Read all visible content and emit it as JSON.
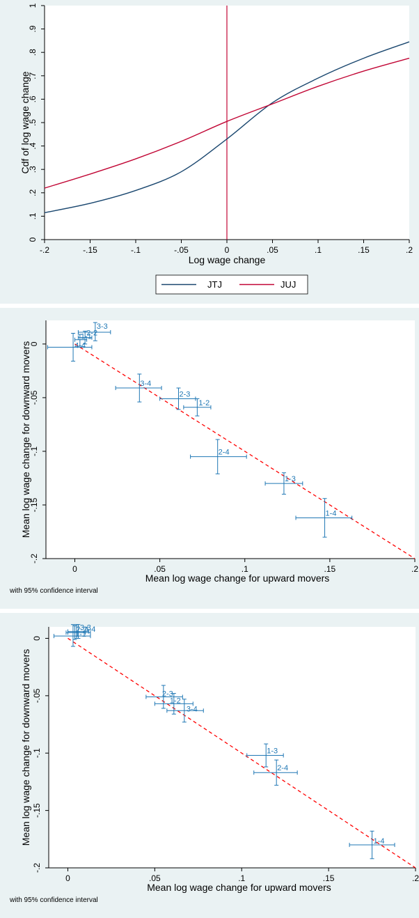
{
  "colors": {
    "panel_bg": "#eaf2f3",
    "plot_bg": "#ffffff",
    "jtj": "#1a476f",
    "juj": "#c10534",
    "markers": "#1f77b4",
    "fit_line": "#ff0000"
  },
  "chart_data": [
    {
      "type": "line",
      "xlabel": "Log wage change",
      "ylabel": "Cdf of log wage change",
      "xlim": [
        -0.2,
        0.2
      ],
      "ylim": [
        0,
        1
      ],
      "xticks": [
        "-.2",
        "-.15",
        "-.1",
        "-.05",
        "0",
        ".05",
        ".1",
        ".15",
        ".2"
      ],
      "yticks": [
        "0",
        ".1",
        ".2",
        ".3",
        ".4",
        ".5",
        ".6",
        ".7",
        ".8",
        ".9",
        "1"
      ],
      "grid": false,
      "legend_position": "bottom",
      "vertical_line_x": 0,
      "series": [
        {
          "name": "JTJ",
          "color": "#1a476f",
          "x": [
            -0.2,
            -0.15,
            -0.1,
            -0.05,
            0,
            0.05,
            0.1,
            0.15,
            0.2
          ],
          "y": [
            0.115,
            0.155,
            0.21,
            0.29,
            0.43,
            0.585,
            0.69,
            0.775,
            0.845
          ]
        },
        {
          "name": "JUJ",
          "color": "#c10534",
          "x": [
            -0.2,
            -0.15,
            -0.1,
            -0.05,
            0,
            0.05,
            0.1,
            0.15,
            0.2
          ],
          "y": [
            0.22,
            0.28,
            0.345,
            0.42,
            0.505,
            0.58,
            0.655,
            0.72,
            0.775
          ]
        }
      ]
    },
    {
      "type": "scatter",
      "xlabel": "Mean log wage change for upward movers",
      "ylabel": "Mean log wage change for downward movers",
      "note": "with 95% confidence interval",
      "xlim": [
        -0.017,
        0.2
      ],
      "ylim": [
        -0.2,
        0.022
      ],
      "xticks": [
        "0",
        ".05",
        ".1",
        ".15",
        ".2"
      ],
      "yticks": [
        "-.2",
        "-.15",
        "-.1",
        "-.05",
        "0"
      ],
      "grid": false,
      "reference_line": {
        "x": [
          0,
          0.2
        ],
        "y": [
          0,
          -0.2
        ]
      },
      "points": [
        {
          "label": "3-3",
          "x": 0.012,
          "y": 0.011,
          "x_lo": 0.002,
          "x_hi": 0.021,
          "y_lo": 0.003,
          "y_hi": 0.02
        },
        {
          "label": "2-2",
          "x": 0.006,
          "y": 0.006,
          "x_lo": 0.002,
          "x_hi": 0.01,
          "y_lo": 0.0,
          "y_hi": 0.012
        },
        {
          "label": "1-1",
          "x": 0.003,
          "y": 0.004,
          "x_lo": 0.0,
          "x_hi": 0.007,
          "y_lo": -0.002,
          "y_hi": 0.009
        },
        {
          "label": "4-4",
          "x": -0.001,
          "y": -0.003,
          "x_lo": -0.016,
          "x_hi": 0.01,
          "y_lo": -0.016,
          "y_hi": 0.01
        },
        {
          "label": "3-4",
          "x": 0.038,
          "y": -0.041,
          "x_lo": 0.024,
          "x_hi": 0.051,
          "y_lo": -0.054,
          "y_hi": -0.028
        },
        {
          "label": "2-3",
          "x": 0.061,
          "y": -0.051,
          "x_lo": 0.05,
          "x_hi": 0.071,
          "y_lo": -0.061,
          "y_hi": -0.041
        },
        {
          "label": "1-2",
          "x": 0.072,
          "y": -0.059,
          "x_lo": 0.064,
          "x_hi": 0.08,
          "y_lo": -0.067,
          "y_hi": -0.051
        },
        {
          "label": "2-4",
          "x": 0.084,
          "y": -0.105,
          "x_lo": 0.068,
          "x_hi": 0.101,
          "y_lo": -0.121,
          "y_hi": -0.089
        },
        {
          "label": "1-3",
          "x": 0.123,
          "y": -0.13,
          "x_lo": 0.112,
          "x_hi": 0.134,
          "y_lo": -0.14,
          "y_hi": -0.12
        },
        {
          "label": "1-4",
          "x": 0.147,
          "y": -0.162,
          "x_lo": 0.13,
          "x_hi": 0.163,
          "y_lo": -0.18,
          "y_hi": -0.144
        }
      ]
    },
    {
      "type": "scatter",
      "xlabel": "Mean log wage change for upward movers",
      "ylabel": "Mean log wage change for downward movers",
      "note": "with 95% confidence interval",
      "xlim": [
        -0.011,
        0.2
      ],
      "ylim": [
        -0.2,
        0.01
      ],
      "xticks": [
        "0",
        ".05",
        ".1",
        ".15",
        ".2"
      ],
      "yticks": [
        "-.2",
        "-.15",
        "-.1",
        "-.05",
        "0"
      ],
      "grid": false,
      "reference_line": {
        "x": [
          0,
          0.2
        ],
        "y": [
          0,
          -0.2
        ]
      },
      "points": [
        {
          "label": "3-3",
          "x": 0.005,
          "y": 0.006,
          "x_lo": 0.0,
          "x_hi": 0.012,
          "y_lo": 0.0,
          "y_hi": 0.012
        },
        {
          "label": "2-2",
          "x": 0.004,
          "y": 0.005,
          "x_lo": -0.001,
          "x_hi": 0.01,
          "y_lo": -0.001,
          "y_hi": 0.011
        },
        {
          "label": "4-4",
          "x": 0.006,
          "y": 0.005,
          "x_lo": 0.0,
          "x_hi": 0.013,
          "y_lo": 0.0,
          "y_hi": 0.012
        },
        {
          "label": "1-1",
          "x": 0.003,
          "y": 0.002,
          "x_lo": -0.008,
          "x_hi": 0.013,
          "y_lo": -0.007,
          "y_hi": 0.012
        },
        {
          "label": "2-3",
          "x": 0.055,
          "y": -0.051,
          "x_lo": 0.045,
          "x_hi": 0.066,
          "y_lo": -0.061,
          "y_hi": -0.041
        },
        {
          "label": "1-2",
          "x": 0.061,
          "y": -0.057,
          "x_lo": 0.05,
          "x_hi": 0.072,
          "y_lo": -0.066,
          "y_hi": -0.048
        },
        {
          "label": "3-4",
          "x": 0.067,
          "y": -0.063,
          "x_lo": 0.057,
          "x_hi": 0.078,
          "y_lo": -0.073,
          "y_hi": -0.053
        },
        {
          "label": "1-3",
          "x": 0.114,
          "y": -0.102,
          "x_lo": 0.103,
          "x_hi": 0.124,
          "y_lo": -0.112,
          "y_hi": -0.092
        },
        {
          "label": "2-4",
          "x": 0.12,
          "y": -0.117,
          "x_lo": 0.107,
          "x_hi": 0.132,
          "y_lo": -0.128,
          "y_hi": -0.106
        },
        {
          "label": "1-4",
          "x": 0.175,
          "y": -0.18,
          "x_lo": 0.162,
          "x_hi": 0.188,
          "y_lo": -0.192,
          "y_hi": -0.168
        }
      ]
    }
  ]
}
